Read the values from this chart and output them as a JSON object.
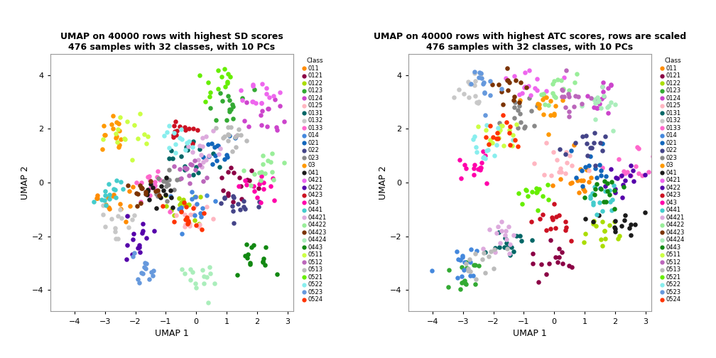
{
  "title_left": "UMAP on 40000 rows with highest SD scores\n476 samples with 32 classes, with 10 PCs",
  "title_right": "UMAP on 40000 rows with highest ATC scores, rows are scaled\n476 samples with 32 classes, with 10 PCs",
  "xlabel": "UMAP 1",
  "ylabel": "UMAP 2",
  "xticks": [
    -4,
    -3,
    -2,
    -1,
    0,
    1,
    2,
    3
  ],
  "yticks": [
    -4,
    -2,
    0,
    2,
    4
  ],
  "xlim": [
    -4.8,
    3.2
  ],
  "ylim": [
    -4.8,
    4.8
  ],
  "classes": [
    "011",
    "0121",
    "0122",
    "0123",
    "0124",
    "0125",
    "0131",
    "0132",
    "0133",
    "014",
    "021",
    "022",
    "023",
    "03",
    "041",
    "0421",
    "0422",
    "0423",
    "043",
    "0441",
    "04421",
    "04422",
    "04423",
    "04424",
    "0443",
    "0511",
    "0512",
    "0513",
    "0521",
    "0522",
    "0523",
    "0524"
  ],
  "colors": [
    "#FF8C00",
    "#8B0045",
    "#AADD00",
    "#33AA33",
    "#CC44CC",
    "#FFB6C1",
    "#006666",
    "#C8C8C8",
    "#FF66CC",
    "#4488DD",
    "#1166BB",
    "#444488",
    "#888888",
    "#FF9900",
    "#1A1A1A",
    "#EE66EE",
    "#5500AA",
    "#CC1122",
    "#FF00AA",
    "#44CCCC",
    "#DDAADD",
    "#99EE99",
    "#7B3300",
    "#AAEEBB",
    "#118811",
    "#CCFF44",
    "#BB66BB",
    "#BBBBBB",
    "#66EE00",
    "#88EEEE",
    "#6699DD",
    "#FF3300"
  ],
  "n_points": 476,
  "background_color": "#ffffff",
  "spine_color": "#999999"
}
